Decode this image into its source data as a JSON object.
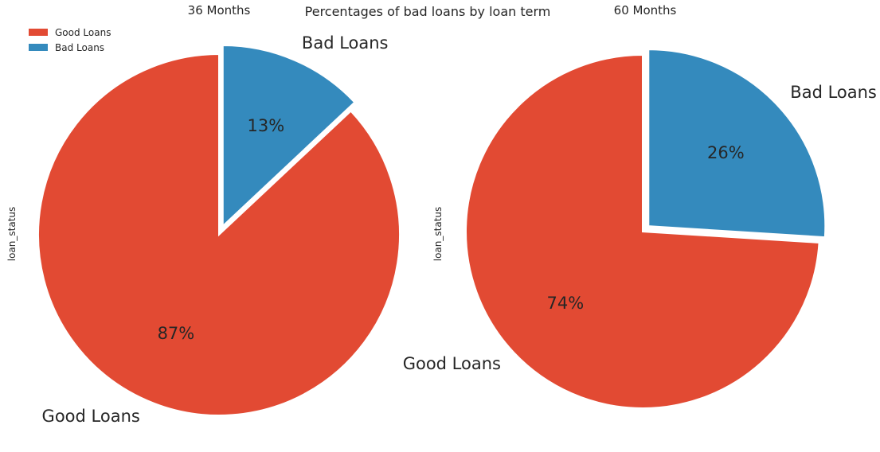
{
  "title": "Percentages of bad loans by loan term",
  "legend": {
    "placement": "top-left",
    "entries": [
      {
        "label": "Good Loans",
        "color": "#E24A33"
      },
      {
        "label": "Bad Loans",
        "color": "#348ABD"
      }
    ]
  },
  "chart_data": [
    {
      "type": "pie",
      "title": "36 Months",
      "ylabel": "loan_status",
      "categories": [
        "Good Loans",
        "Bad Loans"
      ],
      "values": [
        87,
        13
      ],
      "value_labels": [
        "87%",
        "13%"
      ],
      "colors": [
        "#E24A33",
        "#348ABD"
      ],
      "exploded": [
        "Bad Loans"
      ]
    },
    {
      "type": "pie",
      "title": "60 Months",
      "ylabel": "loan_status",
      "categories": [
        "Good Loans",
        "Bad Loans"
      ],
      "values": [
        74,
        26
      ],
      "value_labels": [
        "74%",
        "26%"
      ],
      "colors": [
        "#E24A33",
        "#348ABD"
      ],
      "exploded": [
        "Bad Loans"
      ]
    }
  ]
}
